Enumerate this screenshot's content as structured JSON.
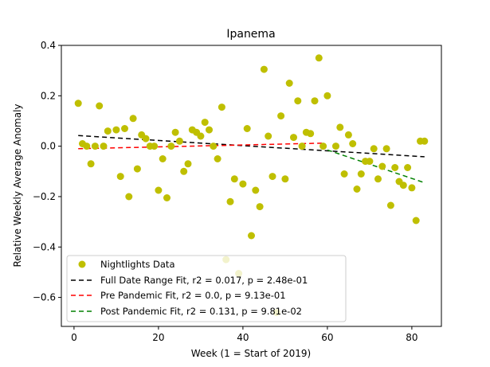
{
  "chart_data": {
    "type": "scatter",
    "title": "Ipanema",
    "xlabel": "Week (1 = Start of 2019)",
    "ylabel": "Relative Weekly Average Anomaly",
    "xlim": [
      -3,
      87
    ],
    "ylim": [
      -0.715,
      0.4
    ],
    "xticks": [
      0,
      20,
      40,
      60,
      80
    ],
    "yticks": [
      -0.6,
      -0.4,
      -0.2,
      0.0,
      0.2,
      0.4
    ],
    "xtick_labels": [
      "0",
      "20",
      "40",
      "60",
      "80"
    ],
    "ytick_labels": [
      "−0.6",
      "−0.4",
      "−0.2",
      "0.0",
      "0.2",
      "0.4"
    ],
    "grid": false,
    "legend_position": "lower-left",
    "colors": {
      "points": "#bfbf00",
      "full_fit": "#000000",
      "pre_fit": "#ff0000",
      "post_fit": "#008000"
    },
    "scatter": {
      "name": "Nightlights Data",
      "x": [
        1,
        2,
        3,
        4,
        5,
        6,
        7,
        8,
        10,
        11,
        12,
        13,
        14,
        15,
        16,
        17,
        18,
        19,
        20,
        21,
        22,
        23,
        24,
        25,
        26,
        27,
        28,
        29,
        30,
        31,
        32,
        33,
        34,
        35,
        36,
        37,
        38,
        39,
        40,
        41,
        42,
        43,
        44,
        45,
        46,
        47,
        48,
        49,
        50,
        51,
        52,
        53,
        54,
        55,
        56,
        57,
        58,
        59,
        60,
        62,
        63,
        64,
        65,
        66,
        67,
        68,
        69,
        70,
        71,
        72,
        73,
        74,
        75,
        76,
        77,
        78,
        79,
        80,
        81,
        82,
        83
      ],
      "y": [
        0.17,
        0.01,
        0.0,
        -0.07,
        0.0,
        0.16,
        0.0,
        0.06,
        0.065,
        -0.12,
        0.07,
        -0.2,
        0.11,
        -0.09,
        0.045,
        0.03,
        0.0,
        0.0,
        -0.175,
        -0.05,
        -0.205,
        0.0,
        0.055,
        0.02,
        -0.1,
        -0.07,
        0.065,
        0.055,
        0.04,
        0.095,
        0.065,
        0.0,
        -0.05,
        0.155,
        -0.45,
        -0.22,
        -0.13,
        -0.505,
        -0.15,
        0.07,
        -0.355,
        -0.175,
        -0.24,
        0.305,
        0.04,
        -0.12,
        -0.66,
        0.12,
        -0.13,
        0.25,
        0.035,
        0.18,
        0.0,
        0.055,
        0.05,
        0.18,
        0.35,
        0.0,
        0.2,
        0.0,
        0.075,
        -0.11,
        0.045,
        0.01,
        -0.17,
        -0.11,
        -0.06,
        -0.06,
        -0.01,
        -0.13,
        -0.08,
        -0.01,
        -0.235,
        -0.085,
        -0.14,
        -0.155,
        -0.085,
        -0.165,
        -0.295,
        0.02,
        0.02
      ]
    },
    "series": [
      {
        "name": "Full Date Range Fit, r2 = 0.017, p = 2.48e-01",
        "x": [
          1,
          83
        ],
        "y": [
          0.042,
          -0.042
        ]
      },
      {
        "name": "Pre Pandemic Fit, r2 = 0.0, p = 9.13e-01",
        "x": [
          1,
          59
        ],
        "y": [
          -0.01,
          0.012
        ]
      },
      {
        "name": "Post Pandemic Fit, r2 = 0.131, p = 9.81e-02",
        "x": [
          60,
          83
        ],
        "y": [
          -0.015,
          -0.145
        ]
      }
    ]
  }
}
